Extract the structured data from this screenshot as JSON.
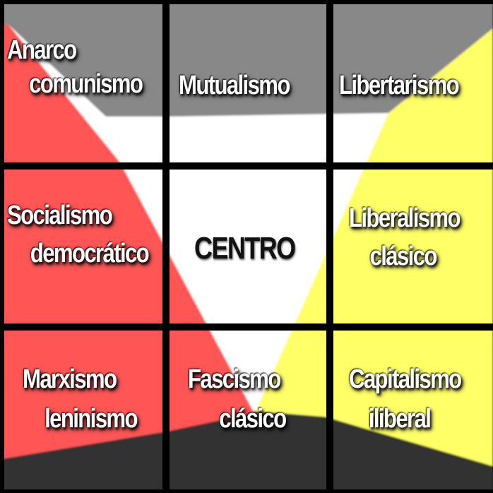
{
  "colors": {
    "left": "#ff5555",
    "right": "#ffff66",
    "top": "#888888",
    "bottom": "#333333",
    "center": "#ffffff",
    "grid": "#000000"
  },
  "cells": [
    {
      "id": "anarco-comunismo",
      "line1": "Anarco",
      "line2": "comunismo"
    },
    {
      "id": "mutualismo",
      "line1": "Mutualismo"
    },
    {
      "id": "libertarismo",
      "line1": "Libertarismo"
    },
    {
      "id": "socialismo-democratico",
      "line1": "Socialismo",
      "line2": "democrático"
    },
    {
      "id": "centro",
      "line1": "CENTRO"
    },
    {
      "id": "liberalismo-clasico",
      "line1": "Liberalismo",
      "line2": "clásico"
    },
    {
      "id": "marxismo-leninismo",
      "line1": "Marxismo",
      "line2": "leninismo"
    },
    {
      "id": "fascismo-clasico",
      "line1": "Fascismo",
      "line2": "clásico"
    },
    {
      "id": "capitalismo-iliberal",
      "line1": "Capitalismo",
      "line2": "iliberal"
    }
  ]
}
